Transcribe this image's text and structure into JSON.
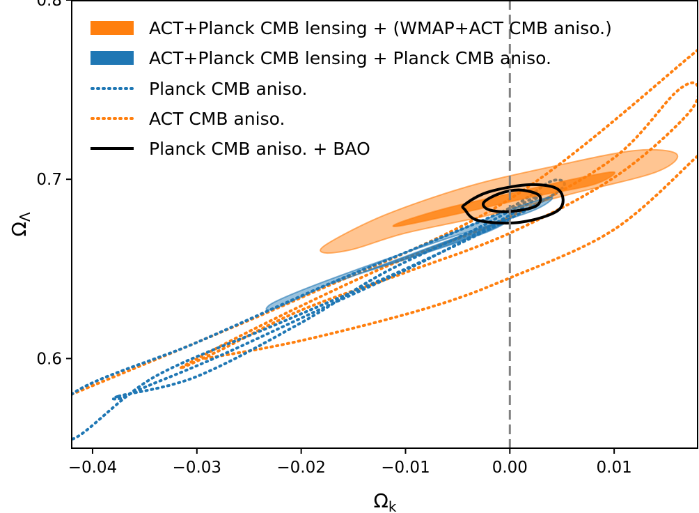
{
  "chart_data": {
    "type": "contour",
    "title": "",
    "xlabel": "Ω",
    "xlabel_sub": "k",
    "ylabel": "Ω",
    "ylabel_sub": "Λ",
    "xlim": [
      -0.042,
      0.018
    ],
    "ylim": [
      0.55,
      0.8
    ],
    "x_ticks": [
      -0.04,
      -0.03,
      -0.02,
      -0.01,
      0.0,
      0.01
    ],
    "x_tick_labels": [
      "−0.04",
      "−0.03",
      "−0.02",
      "−0.01",
      "0.00",
      "0.01"
    ],
    "y_ticks": [
      0.6,
      0.7,
      0.8
    ],
    "y_tick_labels": [
      "0.6",
      "0.7",
      "0.8"
    ],
    "reference_line": {
      "x": 0.0,
      "style": "dashed",
      "color": "#808080"
    },
    "legend_position": "top-left",
    "colors": {
      "orange": "#ff7f0e",
      "blue": "#1f77b4",
      "black": "#000000"
    },
    "series": [
      {
        "name": "ACT+Planck CMB lensing + (WMAP+ACT CMB aniso.)",
        "style": "filled",
        "color": "#ff7f0e",
        "contours": [
          {
            "level": "95%",
            "points": [
              [
                -0.0175,
                0.664
              ],
              [
                -0.012,
                0.68
              ],
              [
                -0.004,
                0.696
              ],
              [
                0.004,
                0.707
              ],
              [
                0.012,
                0.716
              ],
              [
                0.016,
                0.714
              ],
              [
                0.014,
                0.704
              ],
              [
                0.006,
                0.692
              ],
              [
                -0.002,
                0.68
              ],
              [
                -0.01,
                0.67
              ],
              [
                -0.015,
                0.661
              ],
              [
                -0.0178,
                0.659
              ]
            ]
          },
          {
            "level": "68%",
            "points": [
              [
                -0.0105,
                0.676
              ],
              [
                -0.006,
                0.684
              ],
              [
                0.0,
                0.692
              ],
              [
                0.006,
                0.7
              ],
              [
                0.01,
                0.704
              ],
              [
                0.008,
                0.697
              ],
              [
                0.002,
                0.69
              ],
              [
                -0.004,
                0.682
              ],
              [
                -0.0105,
                0.674
              ]
            ]
          }
        ]
      },
      {
        "name": "ACT+Planck CMB lensing + Planck CMB  aniso.",
        "style": "filled",
        "color": "#1f77b4",
        "contours": [
          {
            "level": "95%",
            "points": [
              [
                -0.0225,
                0.628
              ],
              [
                -0.016,
                0.645
              ],
              [
                -0.008,
                0.664
              ],
              [
                0.0,
                0.683
              ],
              [
                0.004,
                0.69
              ],
              [
                0.002,
                0.682
              ],
              [
                -0.006,
                0.667
              ],
              [
                -0.014,
                0.651
              ],
              [
                -0.02,
                0.638
              ],
              [
                -0.023,
                0.63
              ]
            ]
          },
          {
            "level": "68%",
            "points": [
              [
                -0.0165,
                0.643
              ],
              [
                -0.01,
                0.657
              ],
              [
                -0.004,
                0.67
              ],
              [
                0.0,
                0.678
              ],
              [
                -0.002,
                0.671
              ],
              [
                -0.008,
                0.659
              ],
              [
                -0.014,
                0.648
              ],
              [
                -0.0165,
                0.643
              ]
            ]
          }
        ]
      },
      {
        "name": "Planck CMB aniso.",
        "style": "dotted",
        "color": "#1f77b4",
        "contours": [
          {
            "level": "95%",
            "points": [
              [
                -0.042,
                0.58
              ],
              [
                -0.03,
                0.609
              ],
              [
                -0.018,
                0.64
              ],
              [
                -0.008,
                0.664
              ],
              [
                0.0,
                0.684
              ],
              [
                0.004,
                0.699
              ],
              [
                0.005,
                0.695
              ],
              [
                0.0,
                0.678
              ],
              [
                -0.01,
                0.65
              ],
              [
                -0.022,
                0.62
              ],
              [
                -0.034,
                0.59
              ],
              [
                -0.042,
                0.555
              ]
            ]
          },
          {
            "level": "68%",
            "points": [
              [
                -0.0375,
                0.579
              ],
              [
                -0.03,
                0.59
              ],
              [
                -0.02,
                0.62
              ],
              [
                -0.012,
                0.648
              ],
              [
                -0.003,
                0.673
              ],
              [
                0.003,
                0.692
              ],
              [
                0.0,
                0.68
              ],
              [
                -0.008,
                0.655
              ],
              [
                -0.018,
                0.628
              ],
              [
                -0.028,
                0.601
              ],
              [
                -0.035,
                0.584
              ],
              [
                -0.0372,
                0.578
              ]
            ]
          }
        ]
      },
      {
        "name": "ACT CMB aniso.",
        "style": "dotted",
        "color": "#ff7f0e",
        "contours": [
          {
            "level": "95%",
            "points": [
              [
                -0.042,
                0.58
              ],
              [
                -0.02,
                0.634
              ],
              [
                0.0,
                0.689
              ],
              [
                0.018,
                0.772
              ]
            ]
          },
          {
            "level": "95%-lower",
            "points": [
              [
                -0.0292,
                0.6
              ],
              [
                -0.02,
                0.61
              ],
              [
                -0.008,
                0.628
              ],
              [
                0.0,
                0.645
              ],
              [
                0.01,
                0.672
              ],
              [
                0.018,
                0.713
              ]
            ]
          },
          {
            "level": "68%",
            "points": [
              [
                -0.0315,
                0.595
              ],
              [
                -0.024,
                0.618
              ],
              [
                -0.012,
                0.651
              ],
              [
                0.0,
                0.679
              ],
              [
                0.01,
                0.712
              ],
              [
                0.016,
                0.749
              ],
              [
                0.018,
                0.752
              ],
              [
                0.017,
                0.736
              ],
              [
                0.01,
                0.701
              ],
              [
                0.0,
                0.67
              ],
              [
                -0.01,
                0.648
              ],
              [
                -0.02,
                0.627
              ],
              [
                -0.028,
                0.604
              ]
            ]
          }
        ]
      },
      {
        "name": "Planck CMB aniso. + BAO",
        "style": "solid",
        "color": "#000000",
        "contours": [
          {
            "level": "95%",
            "points": [
              [
                -0.0043,
                0.686
              ],
              [
                -0.002,
                0.693
              ],
              [
                0.002,
                0.697
              ],
              [
                0.0047,
                0.694
              ],
              [
                0.0047,
                0.683
              ],
              [
                0.001,
                0.676
              ],
              [
                -0.003,
                0.677
              ],
              [
                -0.0043,
                0.683
              ]
            ]
          },
          {
            "level": "68%",
            "points": [
              [
                -0.0025,
                0.687
              ],
              [
                -0.001,
                0.692
              ],
              [
                0.001,
                0.694
              ],
              [
                0.0028,
                0.691
              ],
              [
                0.0025,
                0.685
              ],
              [
                0.0,
                0.682
              ],
              [
                -0.002,
                0.683
              ]
            ]
          }
        ]
      }
    ]
  },
  "legend": [
    {
      "label": "ACT+Planck CMB lensing + (WMAP+ACT CMB aniso.)",
      "style": "filled",
      "color": "#ff7f0e"
    },
    {
      "label": "ACT+Planck CMB lensing + Planck CMB  aniso.",
      "style": "filled",
      "color": "#1f77b4"
    },
    {
      "label": "Planck CMB aniso.",
      "style": "dotted",
      "color": "#1f77b4"
    },
    {
      "label": "ACT CMB aniso.",
      "style": "dotted",
      "color": "#ff7f0e"
    },
    {
      "label": "Planck CMB aniso. + BAO",
      "style": "solid",
      "color": "#000000"
    }
  ]
}
